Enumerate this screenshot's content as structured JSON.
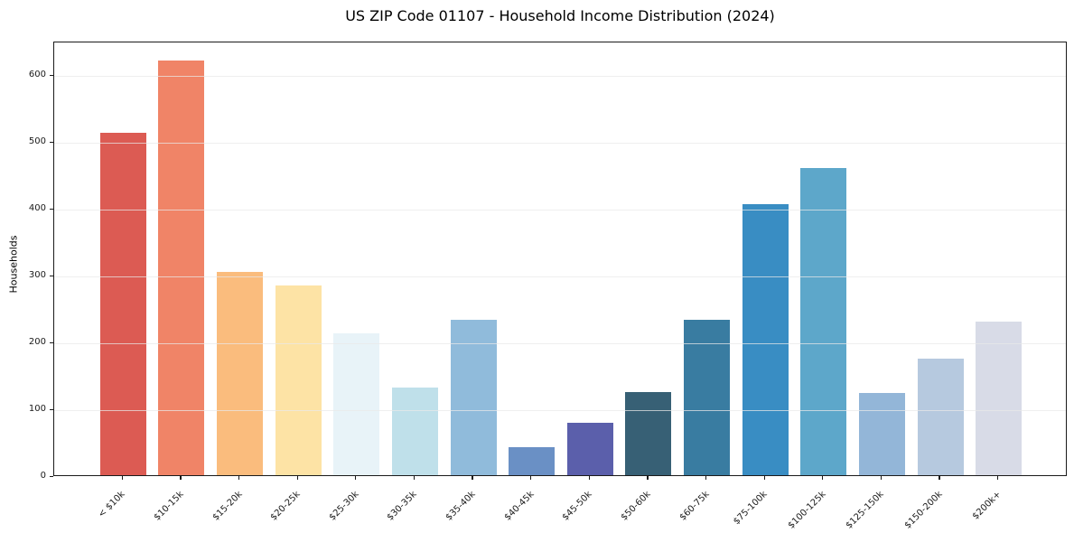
{
  "title": "US ZIP Code 01107 - Household Income Distribution (2024)",
  "axes": {
    "ylabel": "Households",
    "xlabel": ""
  },
  "chart_data": {
    "type": "bar",
    "title": "US ZIP Code 01107 - Household Income Distribution (2024)",
    "xlabel": "",
    "ylabel": "Households",
    "categories": [
      "< $10k",
      "$10-15k",
      "$15-20k",
      "$20-25k",
      "$25-30k",
      "$30-35k",
      "$35-40k",
      "$40-45k",
      "$45-50k",
      "$50-60k",
      "$60-75k",
      "$75-100k",
      "$100-125k",
      "$125-150k",
      "$150-200k",
      "$200k+"
    ],
    "values": [
      512,
      620,
      304,
      284,
      212,
      131,
      233,
      42,
      78,
      125,
      233,
      406,
      460,
      123,
      174,
      230
    ],
    "bar_colors": [
      "#dc5b53",
      "#f08467",
      "#fabc7d",
      "#fde3a5",
      "#e8f3f8",
      "#bfe0ea",
      "#90bbdb",
      "#6a90c5",
      "#5b5fab",
      "#376075",
      "#397ca1",
      "#398dc3",
      "#5da7ca",
      "#93b6d8",
      "#b6c9df",
      "#d8dbe7"
    ],
    "ylim": [
      0,
      650
    ],
    "yticks": [
      0,
      100,
      200,
      300,
      400,
      500,
      600
    ],
    "grid": "horizontal",
    "legend": "none",
    "plot_bg": "#ffffff",
    "spine_color": "#1a1a1a"
  }
}
